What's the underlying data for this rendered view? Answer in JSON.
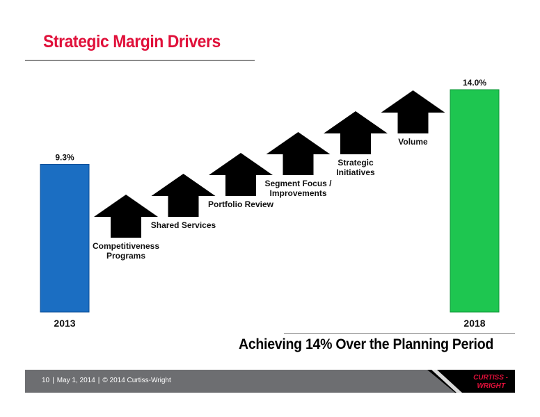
{
  "title": "Strategic Margin Drivers",
  "tagline": "Achieving 14% Over the Planning Period",
  "footer": {
    "page": "10",
    "date": "May 1, 2014",
    "copyright": "© 2014 Curtiss-Wright",
    "logo_line1": "CURTISS -",
    "logo_line2": "WRIGHT"
  },
  "colors": {
    "title": "#e0103a",
    "bar_2013": "#1b6ec2",
    "bar_2018": "#1ec650",
    "arrow": "#000000",
    "footer": "#6d6e71"
  },
  "chart_data": {
    "type": "bar",
    "bars": [
      {
        "category": "2013",
        "value": 9.3,
        "value_label": "9.3%"
      },
      {
        "category": "2018",
        "value": 14.0,
        "value_label": "14.0%"
      }
    ],
    "drivers": [
      {
        "label_lines": [
          "Competitiveness",
          "Programs"
        ],
        "icon": "up-arrow-icon"
      },
      {
        "label_lines": [
          "Shared Services"
        ],
        "icon": "up-arrow-icon"
      },
      {
        "label_lines": [
          "Portfolio Review"
        ],
        "icon": "up-arrow-icon"
      },
      {
        "label_lines": [
          "Segment Focus /",
          "Improvements"
        ],
        "icon": "up-arrow-icon"
      },
      {
        "label_lines": [
          "Strategic",
          "Initiatives"
        ],
        "icon": "up-arrow-icon"
      },
      {
        "label_lines": [
          "Volume"
        ],
        "icon": "up-arrow-icon"
      }
    ]
  }
}
